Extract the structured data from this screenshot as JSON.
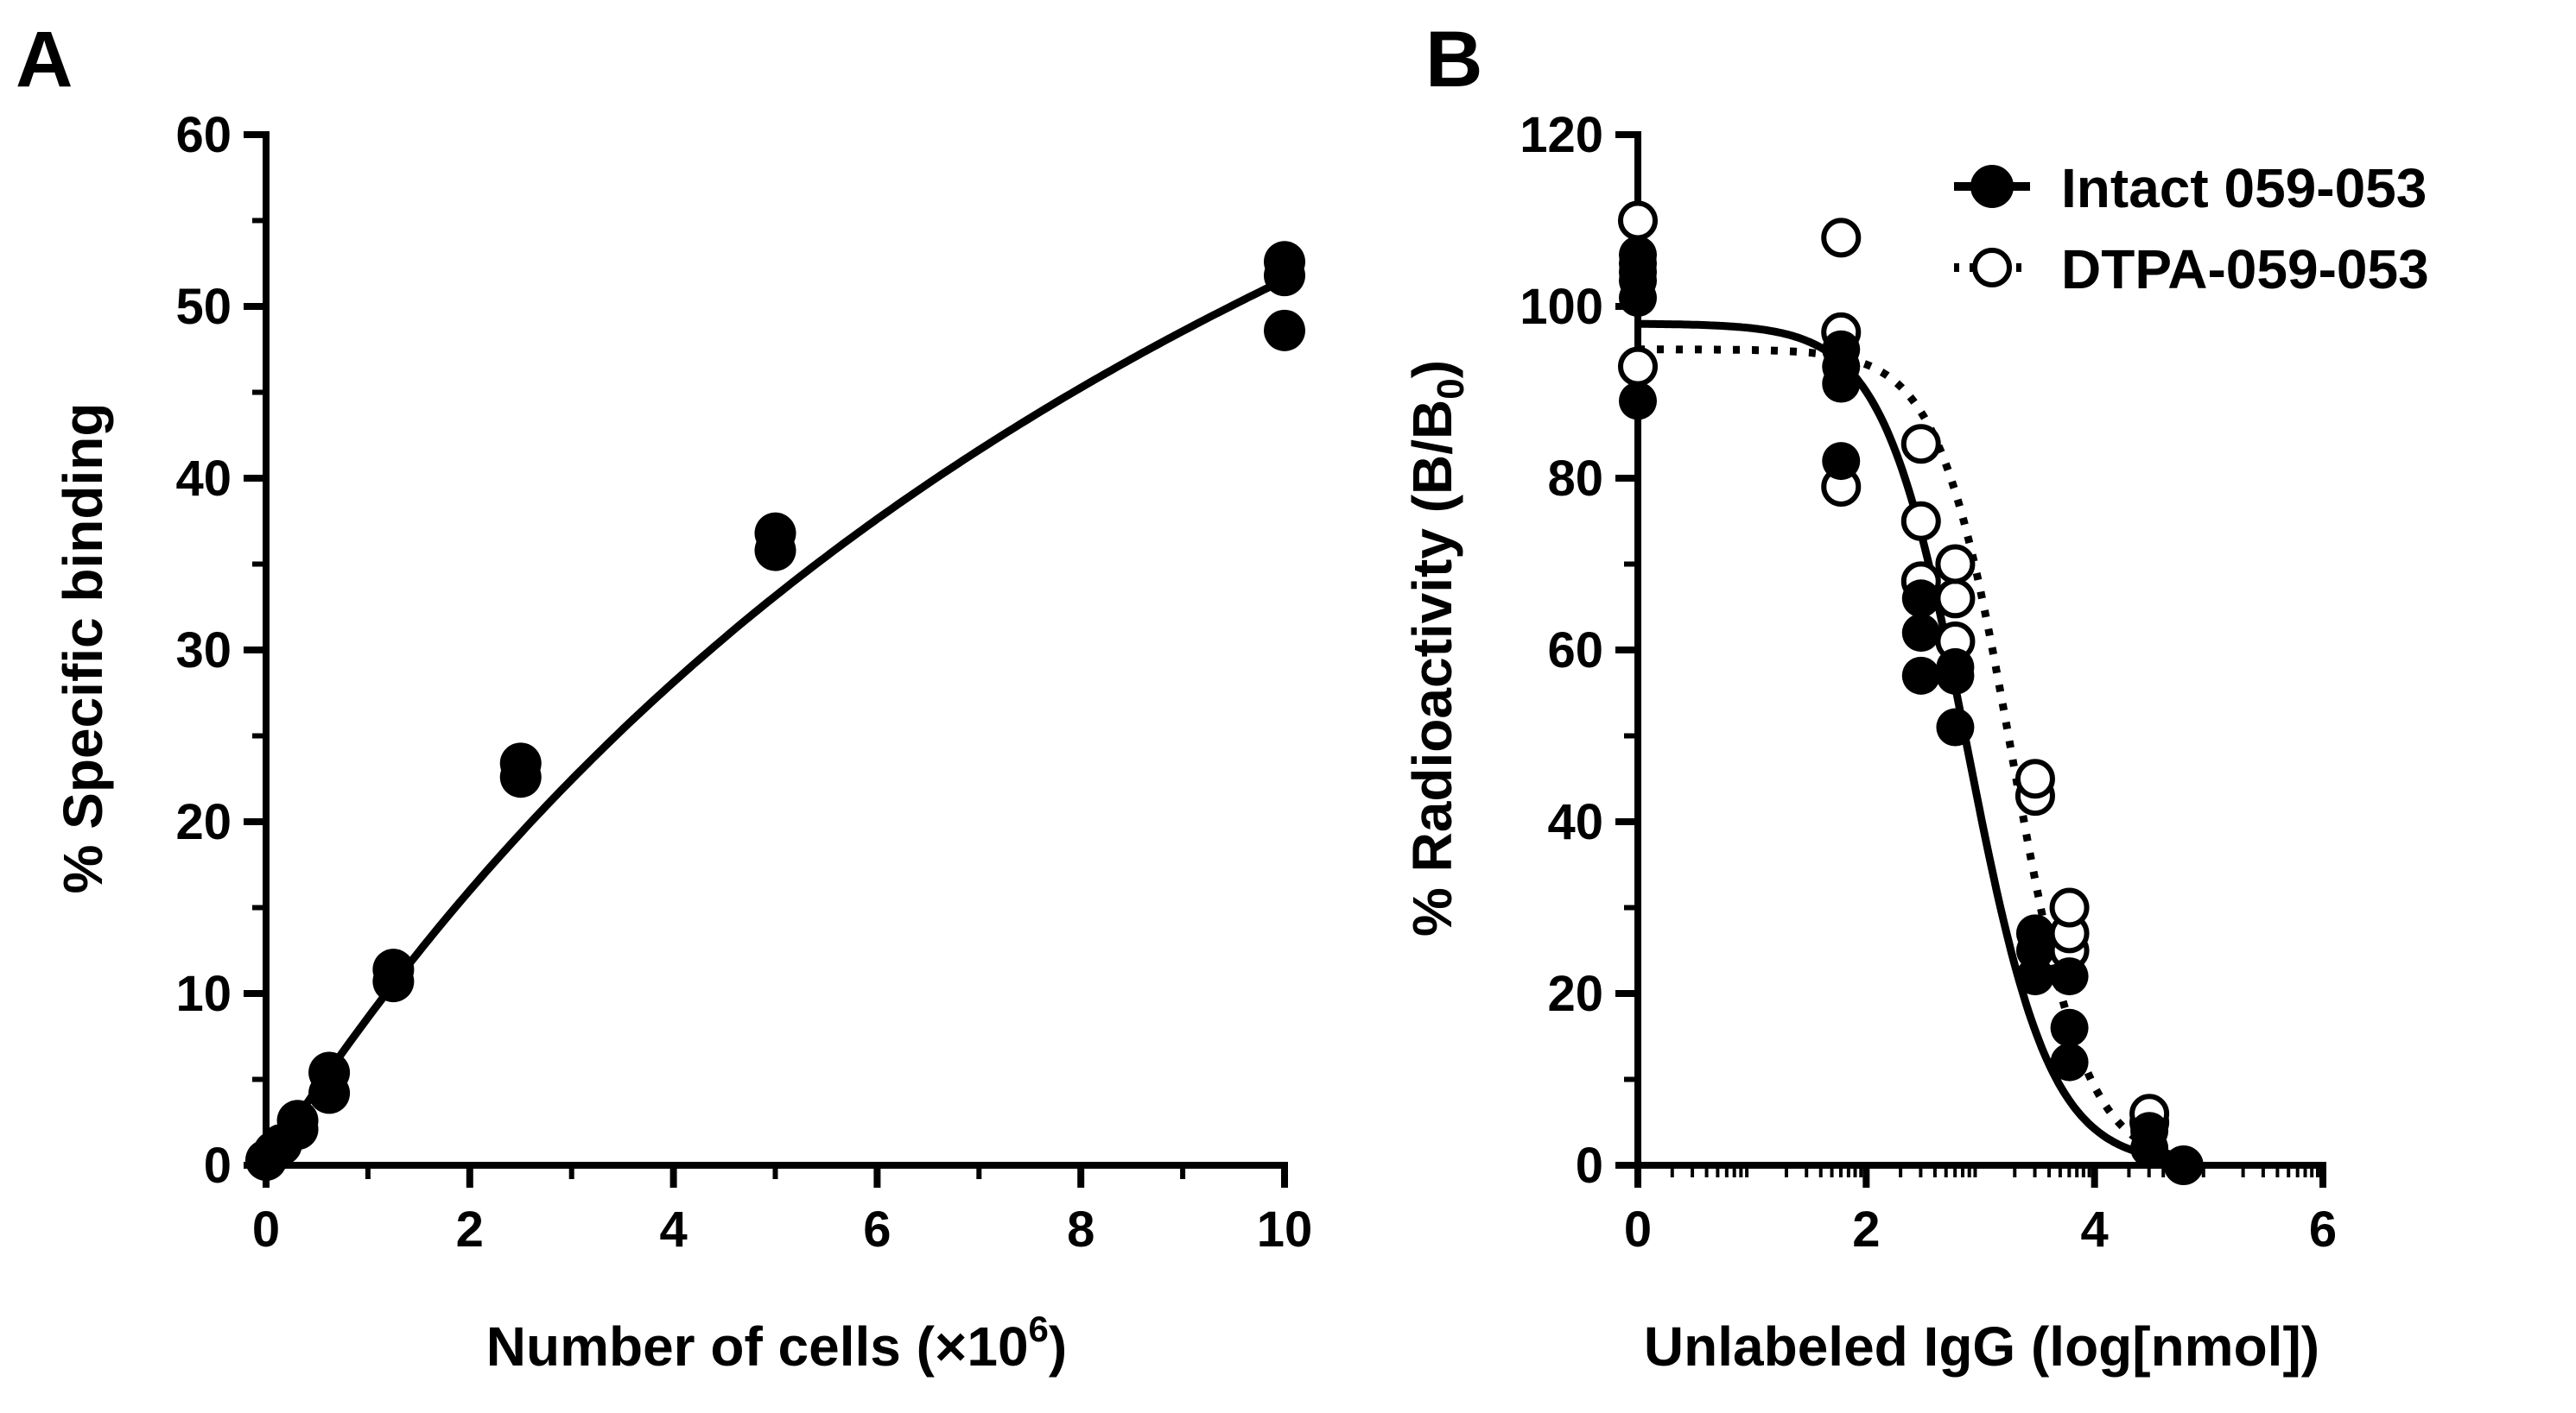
{
  "chart_data": [
    {
      "panel": "A",
      "type": "scatter",
      "xlabel": "Number of cells (×10",
      "xlabel_sup": "6",
      "xlabel_end": ")",
      "ylabel": "% Specific binding",
      "xlim": [
        0,
        10
      ],
      "ylim": [
        0,
        60
      ],
      "xticks": [
        0,
        2,
        4,
        6,
        8,
        10
      ],
      "yticks": [
        0,
        10,
        20,
        30,
        40,
        50,
        60
      ],
      "series": [
        {
          "name": "Specific binding",
          "marker": "filled-circle",
          "points": [
            {
              "x": 0.0,
              "y": 0.3
            },
            {
              "x": 0.08,
              "y": 0.8
            },
            {
              "x": 0.15,
              "y": 1.2
            },
            {
              "x": 0.31,
              "y": 2.1
            },
            {
              "x": 0.31,
              "y": 2.6
            },
            {
              "x": 0.62,
              "y": 4.2
            },
            {
              "x": 0.62,
              "y": 5.4
            },
            {
              "x": 1.25,
              "y": 10.7
            },
            {
              "x": 1.25,
              "y": 11.4
            },
            {
              "x": 2.5,
              "y": 22.6
            },
            {
              "x": 2.5,
              "y": 23.4
            },
            {
              "x": 5.0,
              "y": 35.8
            },
            {
              "x": 5.0,
              "y": 36.8
            },
            {
              "x": 10.0,
              "y": 48.6
            },
            {
              "x": 10.0,
              "y": 51.8
            },
            {
              "x": 10.0,
              "y": 52.6
            }
          ],
          "fit": {
            "model": "one-site",
            "bmax": 116,
            "kd": 12.5,
            "style": "solid"
          }
        }
      ]
    },
    {
      "panel": "B",
      "type": "scatter",
      "xlabel": "Unlabeled IgG (log[nmol])",
      "ylabel": "% Radioactivity (B/B",
      "ylabel_sub": "0",
      "ylabel_end": ")",
      "xlim": [
        0,
        6
      ],
      "ylim": [
        0,
        120
      ],
      "xticks": [
        0,
        2,
        4,
        6
      ],
      "yticks": [
        0,
        20,
        40,
        60,
        80,
        100,
        120
      ],
      "series": [
        {
          "name": "Intact 059-053",
          "marker": "filled-circle",
          "line": "solid",
          "points": [
            {
              "x": 0.0,
              "y": 89
            },
            {
              "x": 0.0,
              "y": 101
            },
            {
              "x": 0.0,
              "y": 103
            },
            {
              "x": 0.0,
              "y": 104
            },
            {
              "x": 0.0,
              "y": 105
            },
            {
              "x": 0.0,
              "y": 106
            },
            {
              "x": 1.78,
              "y": 82
            },
            {
              "x": 1.78,
              "y": 91
            },
            {
              "x": 1.78,
              "y": 93
            },
            {
              "x": 1.78,
              "y": 95
            },
            {
              "x": 2.48,
              "y": 57
            },
            {
              "x": 2.48,
              "y": 62
            },
            {
              "x": 2.48,
              "y": 66
            },
            {
              "x": 2.78,
              "y": 51
            },
            {
              "x": 2.78,
              "y": 57
            },
            {
              "x": 2.78,
              "y": 58
            },
            {
              "x": 3.48,
              "y": 22
            },
            {
              "x": 3.48,
              "y": 25
            },
            {
              "x": 3.48,
              "y": 27
            },
            {
              "x": 3.78,
              "y": 12
            },
            {
              "x": 3.78,
              "y": 16
            },
            {
              "x": 3.78,
              "y": 22
            },
            {
              "x": 4.48,
              "y": 2
            },
            {
              "x": 4.48,
              "y": 4
            },
            {
              "x": 4.78,
              "y": 0
            }
          ],
          "fit": {
            "top": 98,
            "bottom": 0,
            "logic50": 2.88,
            "hill": -1.2
          }
        },
        {
          "name": "DTPA-059-053",
          "marker": "open-circle",
          "line": "dotted",
          "points": [
            {
              "x": 0.0,
              "y": 93
            },
            {
              "x": 0.0,
              "y": 110
            },
            {
              "x": 1.78,
              "y": 79
            },
            {
              "x": 1.78,
              "y": 97
            },
            {
              "x": 1.78,
              "y": 108
            },
            {
              "x": 2.48,
              "y": 68
            },
            {
              "x": 2.48,
              "y": 75
            },
            {
              "x": 2.48,
              "y": 84
            },
            {
              "x": 2.78,
              "y": 61
            },
            {
              "x": 2.78,
              "y": 66
            },
            {
              "x": 2.78,
              "y": 70
            },
            {
              "x": 3.48,
              "y": 43
            },
            {
              "x": 3.48,
              "y": 45
            },
            {
              "x": 3.78,
              "y": 25
            },
            {
              "x": 3.78,
              "y": 27
            },
            {
              "x": 3.78,
              "y": 30
            },
            {
              "x": 4.48,
              "y": 5
            },
            {
              "x": 4.48,
              "y": 6
            },
            {
              "x": 4.78,
              "y": 0
            }
          ],
          "fit": {
            "top": 95,
            "bottom": 0,
            "logic50": 3.28,
            "hill": -1.35
          }
        }
      ]
    }
  ],
  "labels": {
    "panel_a": "A",
    "panel_b": "B"
  },
  "legend": [
    {
      "label": "Intact 059-053",
      "marker": "filled-circle",
      "line": "solid"
    },
    {
      "label": "DTPA-059-053",
      "marker": "open-circle",
      "line": "dotted"
    }
  ]
}
